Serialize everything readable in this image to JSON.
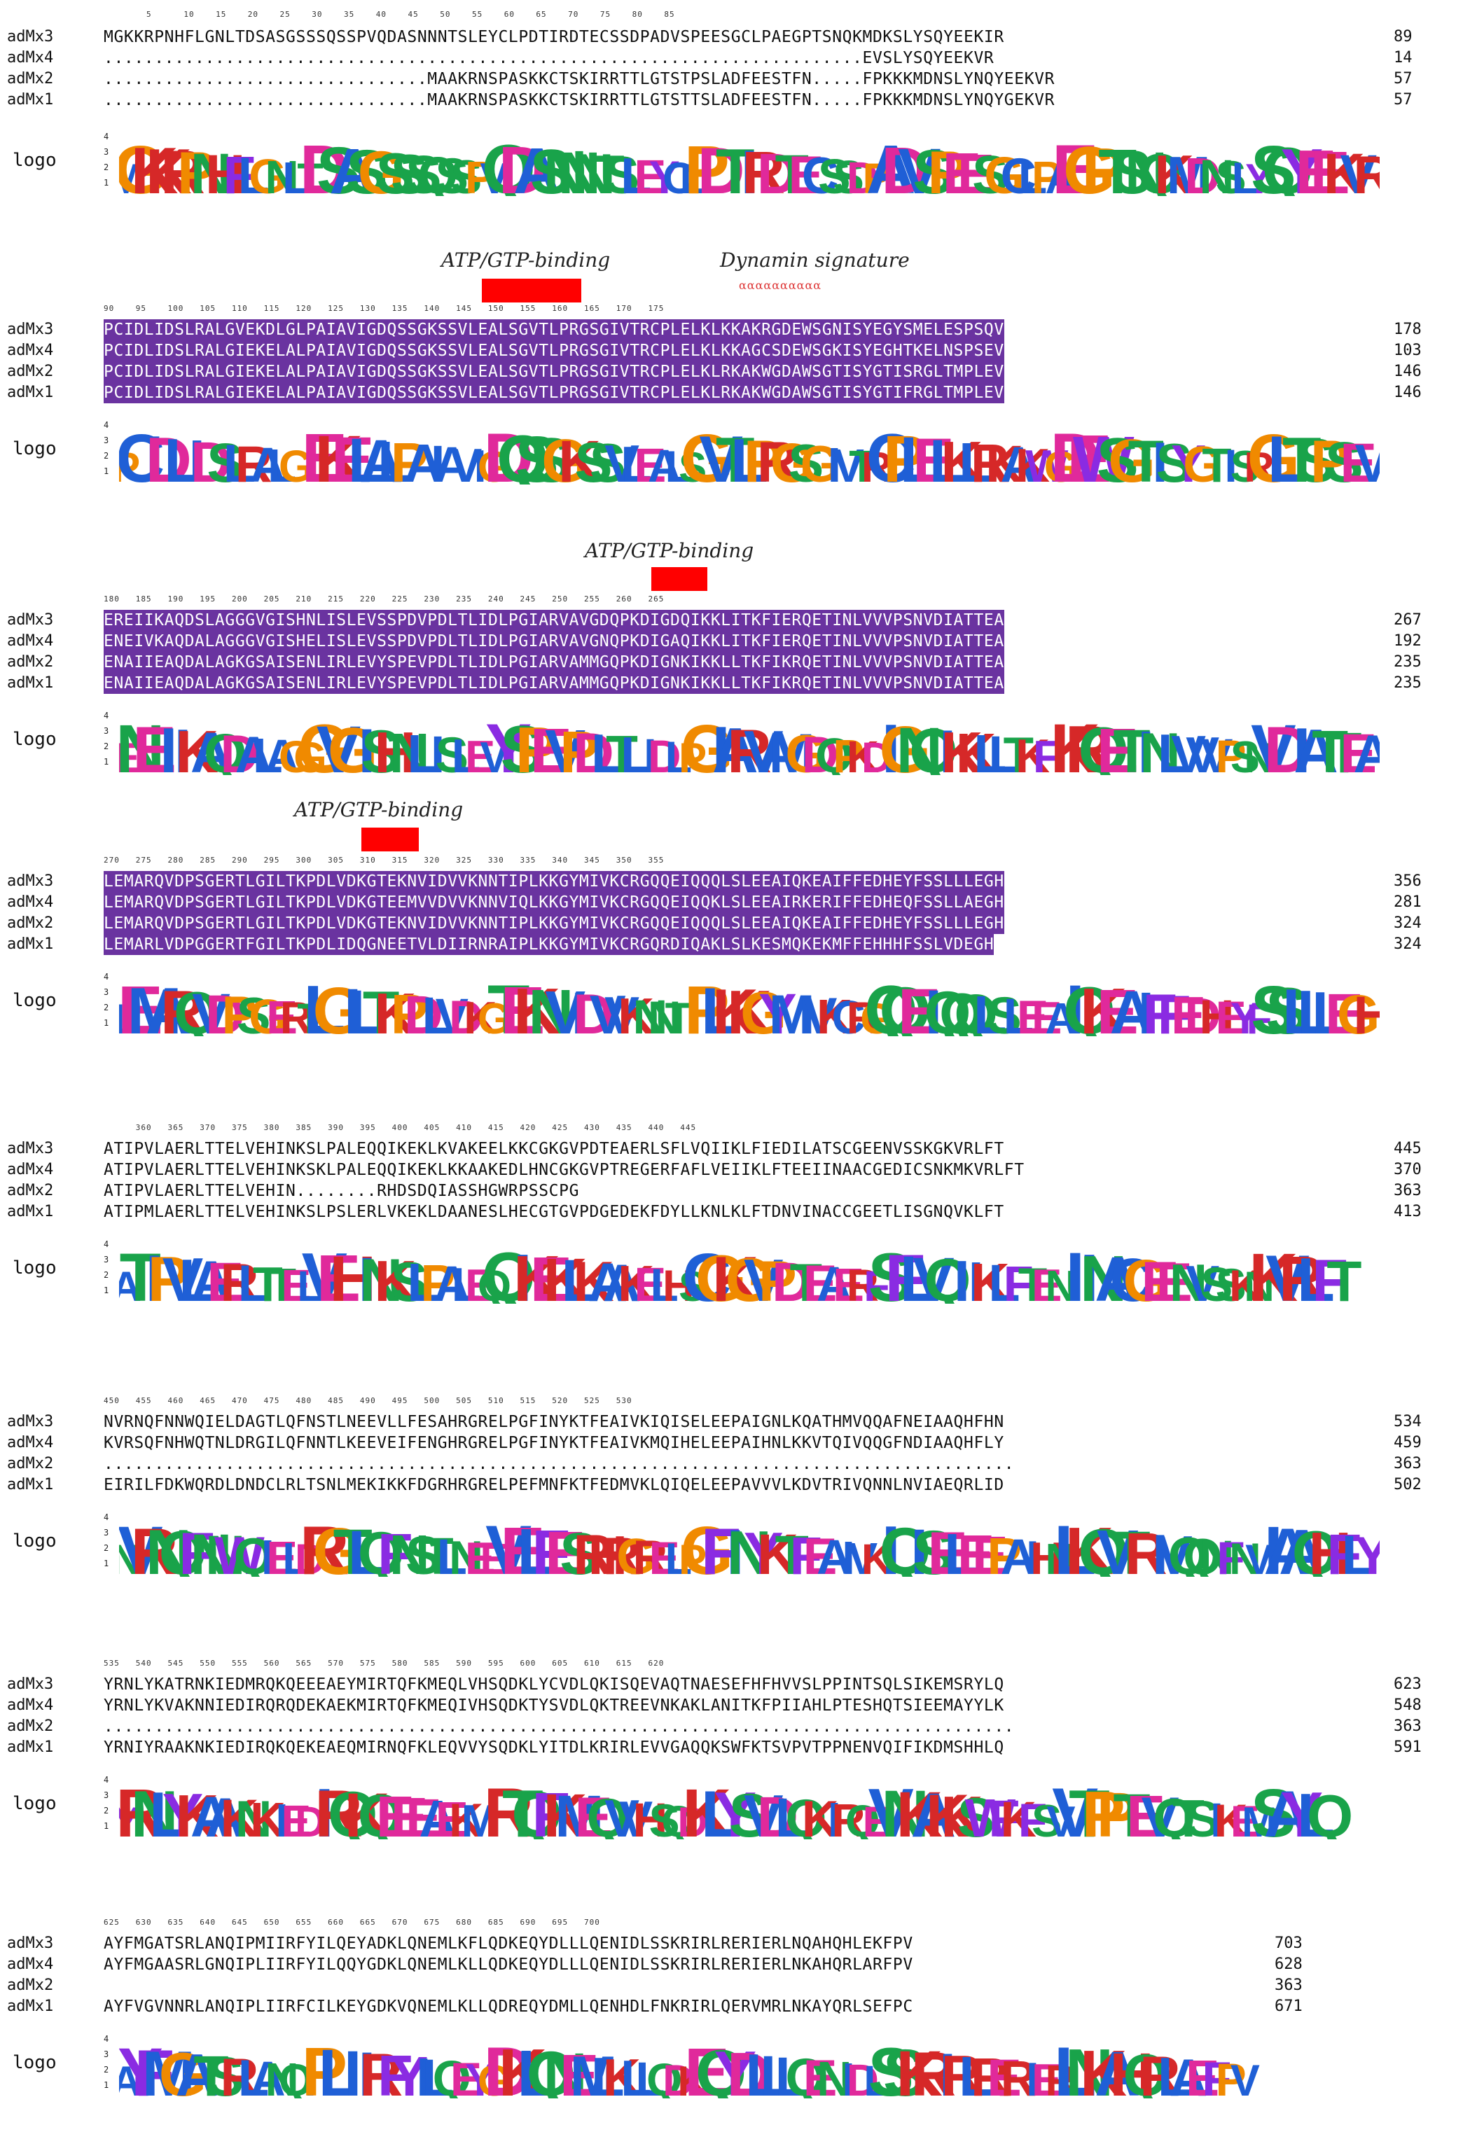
{
  "labels": {
    "logo": "logo"
  },
  "annotations": {
    "atp1": "ATP/GTP-binding",
    "dynamin": "Dynamin signature",
    "atp2": "ATP/GTP-binding",
    "atp3": "ATP/GTP-binding"
  },
  "colors": {
    "highlight": "#6a33a0",
    "motif_bar": "#ff0000"
  },
  "blocks": [
    {
      "ticks": "        5      10    15    20    25    30    35    40    45    50    55    60    65    70    75    80    85",
      "rows": [
        {
          "name": "adMx3",
          "seq": "MGKKRPNHFLGNLTDSASGSSSQSSPVQDASNNNTSLEYCLPDTIRDTECSSDPADVSPEESGCLPAEGPTSNQKMDKSLYSQYEEKIR",
          "end": "89"
        },
        {
          "name": "adMx4",
          "seq": "...........................................................................EVSLYSQYEEKVR",
          "end": "14"
        },
        {
          "name": "adMx2",
          "seq": "................................MAAKRNSPASKKCTSKIRRTTLGTSTPSLADFEESTFN.....FPKKKMDNSLYNQYEEKVR",
          "end": "57"
        },
        {
          "name": "adMx1",
          "seq": "................................MAAKRNSPASKKCTSKIRRTTLGTSTTSLADFEESTFN.....FPKKKMDNSLYNQYGEKVR",
          "end": "57"
        }
      ]
    },
    {
      "ticks": "90    95    100   105   110   115   120   125   130   135   140   145   150   155   160   165   170   175",
      "rows": [
        {
          "name": "adMx3",
          "seq": "PCIDLIDSLRALGVEKDLGLPAIAVIGDQSSGKSSVLEALSGVTLPRGSGIVTRCPLELKLKKAKRGDEWSGNISYEGYSMELESPSQV",
          "end": "178"
        },
        {
          "name": "adMx4",
          "seq": "PCIDLIDSLRALGIEKELALPAIAVIGDQSSGKSSVLEALSGVTLPRGSGIVTRCPLELKLKKAGCSDEWSGKISYEGHTKELNSPSEV",
          "end": "103"
        },
        {
          "name": "adMx2",
          "seq": "PCIDLIDSLRALGIEKELALPAIAVIGDQSSGKSSVLEALSGVTLPRGSGIVTRCPLELKLRKAKWGDAWSGTISYGTISRGLTMPLEV",
          "end": "146"
        },
        {
          "name": "adMx1",
          "seq": "PCIDLIDSLRALGIEKELALPAIAVIGDQSSGKSSVLEALSGVTLPRGSGIVTRCPLELKLRKAKWGDAWSGTISYGTIFRGLTMPLEV",
          "end": "146"
        }
      ]
    },
    {
      "ticks": "180   185   190   195   200   205   210   215   220   225   230   235   240   245   250   255   260   265",
      "rows": [
        {
          "name": "adMx3",
          "seq": "EREIIKAQDSLAGGGVGISHNLISLEVSSPDVPDLTLIDLPGIARVAVGDQPKDIGDQIKKLITKFIERQETINLVVVPSNVDIATTEA",
          "end": "267"
        },
        {
          "name": "adMx4",
          "seq": "ENEIVKAQDALAGGGVGISHELISLEVSSPDVPDLTLIDLPGIARVAVGNQPKDIGAQIKKLITKFIERQETINLVVVPSNVDIATTEA",
          "end": "192"
        },
        {
          "name": "adMx2",
          "seq": "ENAIIEAQDALAGKGSAISENLIRLEVYSPEVPDLTLIDLPGIARVAMMGQPKDIGNKIKKLLTKFIKRQETINLVVVPSNVDIATTEA",
          "end": "235"
        },
        {
          "name": "adMx1",
          "seq": "ENAIIEAQDALAGKGSAISENLIRLEVYSPEVPDLTLIDLPGIARVAMMGQPKDIGNKIKKLLTKFIKRQETINLVVVPSNVDIATTEA",
          "end": "235"
        }
      ]
    },
    {
      "ticks": "270   275   280   285   290   295   300   305   310   315   320   325   330   335   340   345   350   355",
      "rows": [
        {
          "name": "adMx3",
          "seq": "LEMARQVDPSGERTLGILTKPDLVDKGTEKNVIDVVKNNTIPLKKGYMIVKCRGQQEIQQQLSLEEAIQKEAIFFEDHEYFSSLLLEGH",
          "end": "356"
        },
        {
          "name": "adMx4",
          "seq": "LEMARQVDPSGERTLGILTKPDLVDKGTEEMVVDVVKNNVIQLKKGYMIVKCRGQQEIQQKLSLEEAIRKERIFFEDHEQFSSLLAEGH",
          "end": "281"
        },
        {
          "name": "adMx2",
          "seq": "LEMARQVDPSGERTLGILTKPDLVDKGTEKNVIDVVKNNTIPLKKGYMIVKCRGQQEIQQQLSLEEAIQKEAIFFEDHEYFSSLLLEGH",
          "end": "324"
        },
        {
          "name": "adMx1",
          "seq": "LEMARLVDPGGERTFGILTKPDLIDQGNEETVLDIIRNRAIPLKKGYMIVKCRGQRDIQAKLSLKESMQKEKMFFEHHHFSSLVDEGH",
          "end": "324"
        }
      ]
    },
    {
      "ticks": "      360   365   370   375   380   385   390   395   400   405   410   415   420   425   430   435   440   445",
      "rows": [
        {
          "name": "adMx3",
          "seq": "ATIPVLAERLTTELVEHINKSLPALEQQIKEKLKVAKEELKKCGKGVPDTEAERLSFLVQIIKLFIEDILATSCGEENVSSKGKVRLFT",
          "end": "445"
        },
        {
          "name": "adMx4",
          "seq": "ATIPVLAERLTTELVEHINKSKLPALEQQIKEKLKKAAKEDLHNCGKGVPTREGERFAFLVEIIKLFTEEIINAACGEDICSNKMKVRLFT",
          "end": "370"
        },
        {
          "name": "adMx2",
          "seq": "ATIPVLAERLTTELVEHIN........RHDSDQIASSHGWRPSSCPG",
          "end": "363"
        },
        {
          "name": "adMx1",
          "seq": "ATIPMLAERLTTELVEHINKSLPSLERLVKEKLDAANESLHECGTGVPDGEDEKFDYLLKNLKLFTDNVINACCGEETLISGNQVKLFT",
          "end": "413"
        }
      ]
    },
    {
      "ticks": "450   455   460   465   470   475   480   485   490   495   500   505   510   515   520   525   530",
      "rows": [
        {
          "name": "adMx3",
          "seq": "NVRNQFNNWQIELDAGTLQFNSTLNEEVLLFESAHRGRELPGFINYKTFEAIVKIQISELEEPAIGNLKQATHMVQQAFNEIAAQHFHN",
          "end": "534"
        },
        {
          "name": "adMx4",
          "seq": "KVRSQFNHWQTNLDRGILQFNNTLKEEVEIFENGHRGRELPGFINYKTFEAIVKMQIHELEEPAIHNLKKVTQIVQQGFNDIAAQHFLY",
          "end": "459"
        },
        {
          "name": "adMx2",
          "seq": "..........................................................................................",
          "end": "363"
        },
        {
          "name": "adMx1",
          "seq": "EIRILFDKWQRDLDNDCLRLTSNLMEKIKKFDGRHRGRELPEFMNFKTFEDMVKLQIQELEEPAVVVLKDVTRIVQNNLNVIAEQRLID",
          "end": "502"
        }
      ]
    },
    {
      "ticks": "535   540   545   550   555   560   565   570   575   580   585   590   595   600   605   610   615   620",
      "rows": [
        {
          "name": "adMx3",
          "seq": "YRNLYKATRNKIEDMRQKQEEEAEYMIRTQFKMEQLVHSQDKLYCVDLQKISQEVAQTNAESEFHFHVVSLPPINTSQLSIKEMSRYLQ",
          "end": "623"
        },
        {
          "name": "adMx4",
          "seq": "YRNLYKVAKNNIEDIRQRQDEKAEKMIRTQFKMEQIVHSQDKTYSVDLQKTREEVNKAKLANITKFPIIAHLPTESHQTSIEEMAYYLK",
          "end": "548"
        },
        {
          "name": "adMx2",
          "seq": "..........................................................................................",
          "end": "363"
        },
        {
          "name": "adMx1",
          "seq": "YRNIYRAAKNKIEDIRQKQEKEAEQMIRNQFKLEQVVYSQDKLYITDLKRIRLEVVGAQQKSWFKTSVPVTPPNENVQIFIKDMSHHLQ",
          "end": "591"
        }
      ]
    },
    {
      "ticks": "625   630   635   640   645   650   655   660   665   670   675   680   685   690   695   700",
      "rows": [
        {
          "name": "adMx3",
          "seq": "AYFMGATSRLANQIPMIIRFYILQEYADKLQNEMLKFLQDKEQYDLLLQENIDLSSKRIRLRERIERLNQAHQHLEKFPV",
          "end": "703"
        },
        {
          "name": "adMx4",
          "seq": "AYFMGAASRLGNQIPLIIRFYILQQYGDKLQNEMLKLLQDKEQYDLLLQENIDLSSKRIRLRERIERLNKAHQRLARFPV",
          "end": "628"
        },
        {
          "name": "adMx2",
          "seq": "",
          "end": "363"
        },
        {
          "name": "adMx1",
          "seq": "AYFVGVNNRLANQIPLIIRFCILKEYGDKVQNEMLKLLQDREQYDMLLQENHDLFNKRIRLQERVMRLNKAYQRLSEFPC",
          "end": "671"
        }
      ]
    }
  ],
  "logo_axis": {
    "t4": "4",
    "t3": "3",
    "t2": "2",
    "t1": "1"
  },
  "consensus": [
    "MGKKRPNHFLGNLTDSASGSSSQSSPVQDASNNNTSLEYCLPDTIRDTECSSDPADVSPEESGCLPAEGPTSNQKMDNSLYSQYEEKVR",
    "PCIDLIDSLRALGIEKELALPAIAVIGDQSSGKSSVLEALSGVTLPRGSGIVTRCPLELKLRKAKWGDEWSGTISYGTISRGLTSPSEV",
    "ENEIIKAQDALAGGGVGISHNLISLEVYSPEVPDLTLIDLPGIARVAMGDQPKDIGNQIKKLLTKFIKRQETINLVVVPSNVDIATTEA",
    "LEMARQVDPSGERTLGILTKPDLVDKGTEKNVIDVVKNNTIPLKKGYMIVKCRGQQEIQQQLSLEEAIQKEAIFFEDHEYFSSLLLEGH",
    "ATIPVLAERLTTELVEHINKSLPALEQQIKEKLKAAKELHSCGKGVPDTEAERFSFLVQIIKLFTENIINACGEENVSSKNKVRLFT",
    "NVRNQFNNWQIELDRGTLQFNSTLNEEVELFESRHRGRELPGFINYKTFEAIVKIQISELEEPAIHNLKQVTRIVQQNFNVIAAQHFLY",
    "YRNLYKAAKNKIEDIRQKQEEEAEKMIRTQFKMEQVVHSQDKLYSVDLQKIRQEVNKAKKSWFKFSVVTPPTEVQTSIKEMSAYLQ",
    "AYFMGATSRLANQIPLIIRFYILQEYGDKLQNEMLKLLQDKEQYDLLLQENIDLSSKRIRLRERIERLNKAHQRLAEFPV"
  ]
}
